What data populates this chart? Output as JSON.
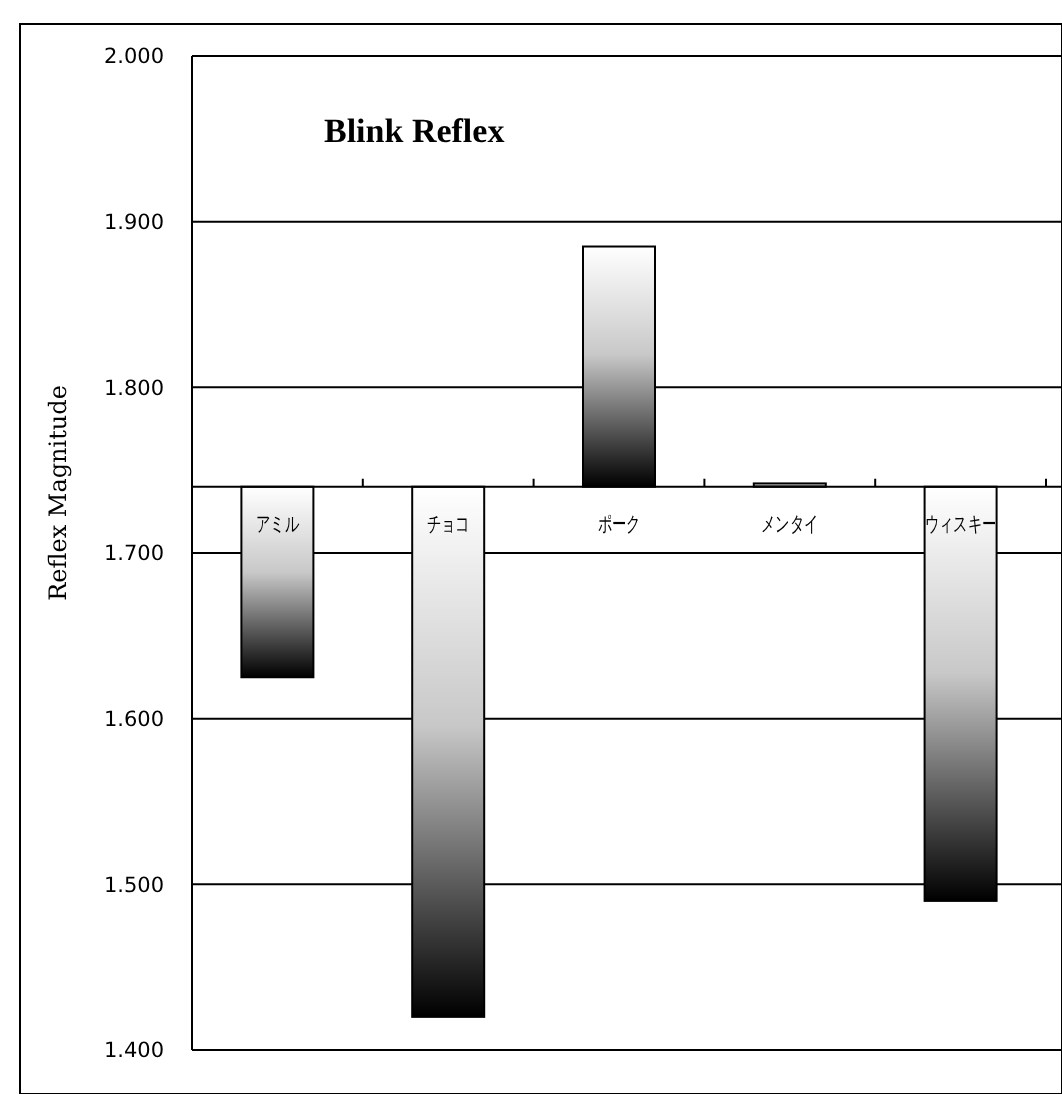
{
  "chart_data": {
    "type": "bar",
    "title": "Blink  Reflex",
    "ylabel": "Reflex Magnitude",
    "categories": [
      "アミル",
      "チョコ",
      "ポーク",
      "メンタイ",
      "ウィスキー"
    ],
    "base": [
      1.74,
      1.74,
      1.74,
      1.74,
      1.74
    ],
    "values": [
      -0.115,
      -0.32,
      0.145,
      0.002,
      -0.25
    ],
    "color": "#000000",
    "ylim": [
      1.4,
      2.0
    ],
    "yticks": [
      {
        "value": 1.4,
        "label": "1.400"
      },
      {
        "value": 1.5,
        "label": "1.500"
      },
      {
        "value": 1.6,
        "label": "1.600"
      },
      {
        "value": 1.7,
        "label": "1.700"
      },
      {
        "value": 1.8,
        "label": "1.800"
      },
      {
        "value": 1.9,
        "label": "1.900"
      },
      {
        "value": 2.0,
        "label": "2.000"
      }
    ],
    "grid": "y"
  }
}
